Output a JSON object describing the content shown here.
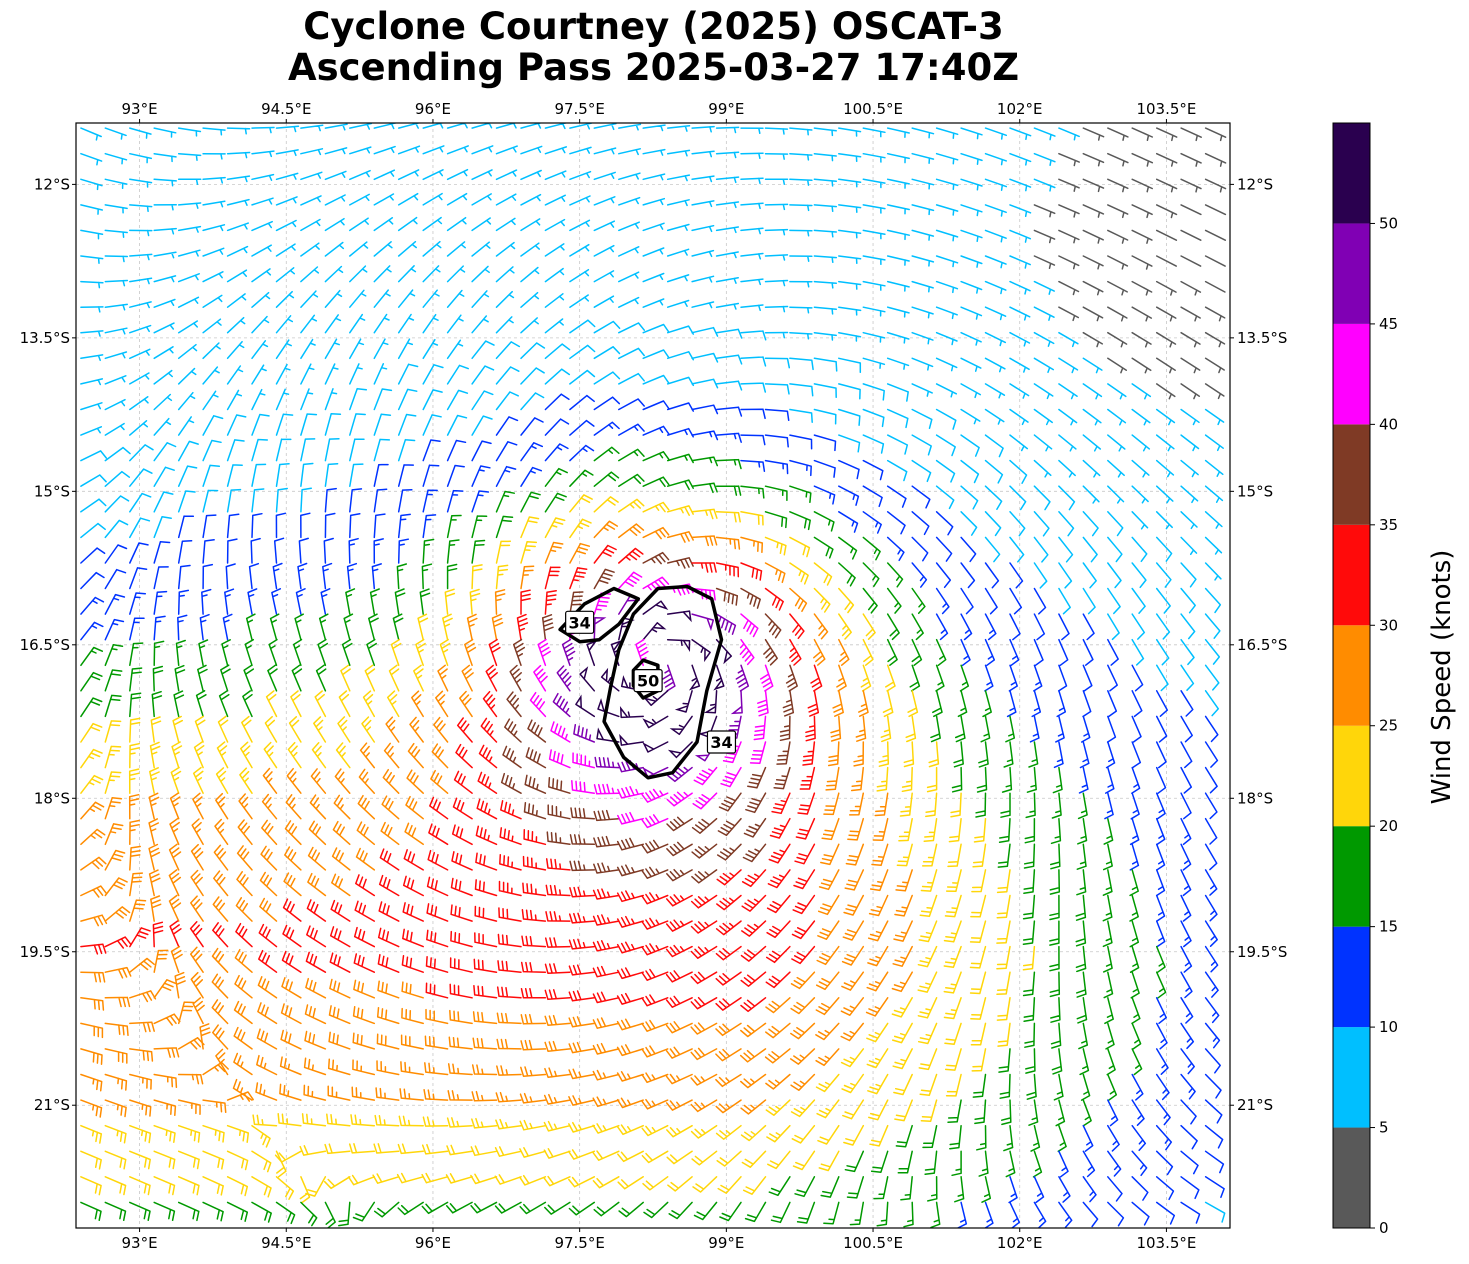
{
  "chart_data": {
    "type": "wind-barb-map",
    "title": "Cyclone Courtney (2025) OSCAT-3",
    "subtitle": "Ascending Pass 2025-03-27 17:40Z",
    "x_axis": {
      "range": [
        92.35,
        104.15
      ],
      "ticks": [
        93,
        94.5,
        96,
        97.5,
        99,
        100.5,
        102,
        103.5
      ],
      "tick_labels": [
        "93°E",
        "94.5°E",
        "96°E",
        "97.5°E",
        "99°E",
        "100.5°E",
        "102°E",
        "103.5°E"
      ]
    },
    "y_axis": {
      "range": [
        -22.2,
        -11.4
      ],
      "ticks": [
        -12,
        -13.5,
        -15,
        -16.5,
        -18,
        -19.5,
        -21
      ],
      "tick_labels": [
        "12°S",
        "13.5°S",
        "15°S",
        "16.5°S",
        "18°S",
        "19.5°S",
        "21°S"
      ]
    },
    "grid": true,
    "cyclone_center": {
      "lon": 98.3,
      "lat": -16.7
    },
    "wind_field": {
      "lon_start": 92.4,
      "lon_end": 104.1,
      "lat_start": -11.45,
      "lat_end": -22.15,
      "spacing_deg": 0.25,
      "background_speed_kt": 24,
      "rotation": "clockwise"
    },
    "secondary_low": {
      "lon": 103.8,
      "lat": -12.5
    },
    "contours": [
      {
        "level": 34,
        "label": "34",
        "path": [
          [
            97.3,
            -16.35
          ],
          [
            97.55,
            -16.1
          ],
          [
            97.85,
            -15.95
          ],
          [
            98.1,
            -16.05
          ],
          [
            97.9,
            -16.3
          ],
          [
            97.7,
            -16.45
          ],
          [
            97.5,
            -16.47
          ],
          [
            97.3,
            -16.35
          ]
        ]
      },
      {
        "level": 34,
        "label": "34",
        "path": [
          [
            98.3,
            -15.95
          ],
          [
            98.6,
            -15.93
          ],
          [
            98.85,
            -16.05
          ],
          [
            98.95,
            -16.45
          ],
          [
            98.8,
            -16.95
          ],
          [
            98.7,
            -17.45
          ],
          [
            98.45,
            -17.75
          ],
          [
            98.2,
            -17.8
          ],
          [
            97.95,
            -17.6
          ],
          [
            97.75,
            -17.25
          ],
          [
            97.82,
            -16.9
          ],
          [
            97.9,
            -16.55
          ],
          [
            98.05,
            -16.2
          ],
          [
            98.3,
            -15.95
          ]
        ]
      },
      {
        "level": 50,
        "label": "50",
        "path": [
          [
            98.05,
            -16.75
          ],
          [
            98.15,
            -16.65
          ],
          [
            98.3,
            -16.7
          ],
          [
            98.3,
            -16.95
          ],
          [
            98.15,
            -17.02
          ],
          [
            98.05,
            -16.9
          ],
          [
            98.05,
            -16.75
          ]
        ]
      }
    ],
    "contour_label_positions": [
      {
        "label": "34",
        "lon": 97.5,
        "lat": -16.28
      },
      {
        "label": "50",
        "lon": 98.2,
        "lat": -16.85
      },
      {
        "label": "34",
        "lon": 98.95,
        "lat": -17.45
      }
    ],
    "colorbar": {
      "label": "Wind Speed (knots)",
      "bounds": [
        0,
        5,
        10,
        15,
        20,
        25,
        30,
        35,
        40,
        45,
        50,
        55
      ],
      "tick_values": [
        0,
        5,
        10,
        15,
        20,
        25,
        30,
        35,
        40,
        45,
        50
      ],
      "tick_labels": [
        "0",
        "5",
        "10",
        "15",
        "20",
        "25",
        "30",
        "35",
        "40",
        "45",
        "50"
      ],
      "colors": [
        "#595959",
        "#00bfff",
        "#0033ff",
        "#009900",
        "#ffd60a",
        "#ff8c00",
        "#ff0a0a",
        "#7f3a25",
        "#ff00ff",
        "#8000b4",
        "#2a004f"
      ]
    }
  }
}
